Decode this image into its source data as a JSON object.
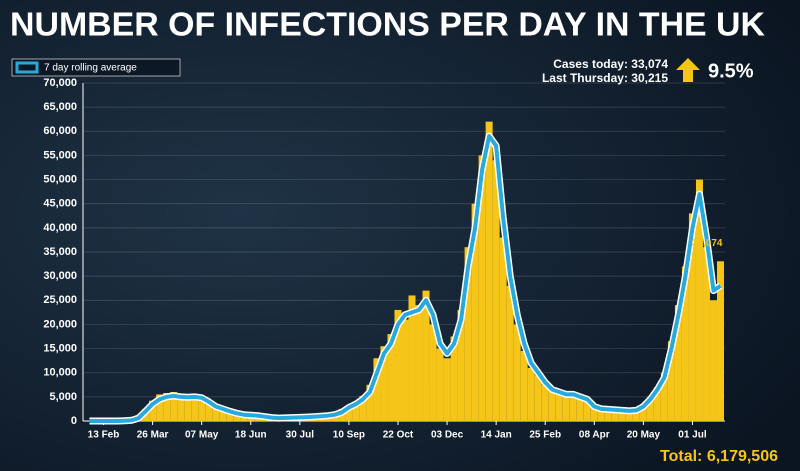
{
  "chart_data": {
    "type": "bar-line",
    "title": "NUMBER OF INFECTIONS PER DAY IN THE UK",
    "categories": [
      null,
      null,
      "13 Feb",
      null,
      null,
      null,
      null,
      null,
      null,
      "26 Mar",
      null,
      null,
      null,
      null,
      null,
      null,
      "07 May",
      null,
      null,
      null,
      null,
      null,
      null,
      "18 Jun",
      null,
      null,
      null,
      null,
      null,
      null,
      "30 Jul",
      null,
      null,
      null,
      null,
      null,
      null,
      "10 Sep",
      null,
      null,
      null,
      null,
      null,
      null,
      "22 Oct",
      null,
      null,
      null,
      null,
      null,
      null,
      "03 Dec",
      null,
      null,
      null,
      null,
      null,
      null,
      "14 Jan",
      null,
      null,
      null,
      null,
      null,
      null,
      "25 Feb",
      null,
      null,
      null,
      null,
      null,
      null,
      "08 Apr",
      null,
      null,
      null,
      null,
      null,
      null,
      "20 May",
      null,
      null,
      null,
      null,
      null,
      null,
      "01 Jul",
      null,
      null,
      null,
      null
    ],
    "series": [
      {
        "color": "#f5c518",
        "values": [
          0,
          0,
          0,
          0,
          15,
          50,
          200,
          800,
          2500,
          4200,
          5500,
          5800,
          6000,
          5200,
          4700,
          5600,
          5000,
          3800,
          3200,
          2300,
          1900,
          1500,
          1400,
          1100,
          1200,
          850,
          750,
          550,
          700,
          800,
          700,
          900,
          1000,
          1100,
          1200,
          1500,
          2500,
          3200,
          4000,
          5200,
          7500,
          13000,
          15500,
          18000,
          23000,
          21000,
          26000,
          24000,
          27000,
          20000,
          15000,
          13000,
          17500,
          23000,
          36000,
          45000,
          55000,
          62000,
          54000,
          38000,
          28000,
          20000,
          14500,
          11000,
          9500,
          7500,
          6800,
          5800,
          5200,
          5900,
          4800,
          4000,
          2700,
          2600,
          2200,
          2400,
          2000,
          2300,
          2100,
          3200,
          5000,
          7000,
          10000,
          16500,
          24000,
          32000,
          43000,
          50000,
          36000,
          25000,
          33074
        ]
      },
      {
        "name": "7 day rolling average",
        "type": "line",
        "color": "#29a8dc",
        "values": [
          0,
          0,
          0,
          0,
          10,
          40,
          150,
          600,
          2000,
          3500,
          4500,
          5000,
          5200,
          5000,
          4900,
          5000,
          4800,
          4000,
          3000,
          2500,
          2000,
          1600,
          1300,
          1200,
          1100,
          900,
          700,
          600,
          650,
          700,
          750,
          800,
          900,
          1000,
          1100,
          1300,
          1800,
          2800,
          3500,
          4500,
          6000,
          10000,
          14000,
          16000,
          20000,
          22000,
          22500,
          23000,
          25000,
          22000,
          16000,
          14000,
          16000,
          21000,
          32000,
          40000,
          52000,
          59000,
          57000,
          42000,
          30000,
          22000,
          16000,
          12000,
          10000,
          8000,
          6500,
          6000,
          5500,
          5500,
          5000,
          4500,
          3000,
          2500,
          2400,
          2300,
          2200,
          2100,
          2200,
          3000,
          4500,
          6500,
          9000,
          15000,
          22000,
          30000,
          40000,
          47000,
          38000,
          27000,
          28000
        ]
      }
    ],
    "ylim": [
      0,
      70000
    ],
    "yticks": [
      0,
      {
        "value": 5000,
        "label": "5,000"
      },
      {
        "value": 10000,
        "label": "10,000"
      },
      {
        "value": 15000,
        "label": "15,000"
      },
      {
        "value": 20000,
        "label": "20,000"
      },
      {
        "value": 25000,
        "label": "25,000"
      },
      {
        "value": 30000,
        "label": "30,000"
      },
      {
        "value": 35000,
        "label": "35,000"
      },
      {
        "value": 40000,
        "label": "40,000"
      },
      {
        "value": 45000,
        "label": "45,000"
      },
      {
        "value": 50000,
        "label": "50,000"
      },
      {
        "value": 55000,
        "label": "55,000"
      },
      {
        "value": 60000,
        "label": "60,000"
      },
      {
        "value": 65000,
        "label": "65,000"
      },
      {
        "value": 70000,
        "label": "70,000"
      }
    ],
    "grid": true,
    "legend": "top-left",
    "annotations": {
      "cases_today": "Cases today: 33,074",
      "last_thursday": "Last Thursday: 30,215",
      "change": "9.5%",
      "total": "Total: 6,179,506",
      "end_label": "33,074"
    }
  }
}
